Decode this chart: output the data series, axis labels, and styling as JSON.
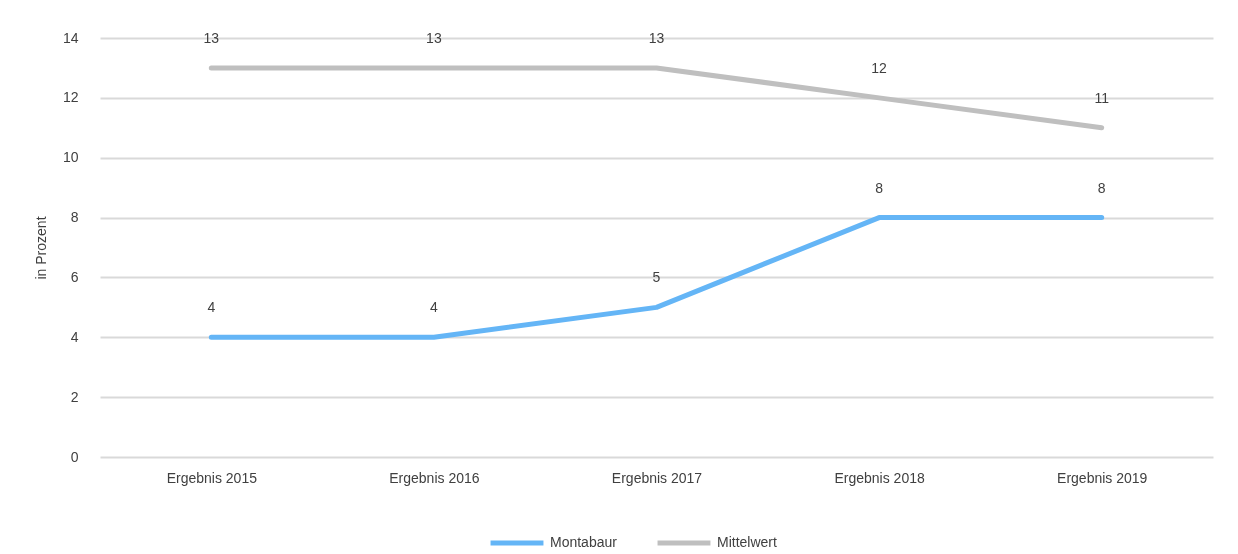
{
  "chart_data": {
    "type": "line",
    "ylabel": "in Prozent",
    "categories": [
      "Ergebnis 2015",
      "Ergebnis 2016",
      "Ergebnis 2017",
      "Ergebnis 2018",
      "Ergebnis 2019"
    ],
    "series": [
      {
        "name": "Montabaur",
        "color": "#64b5f6",
        "values": [
          4,
          4,
          5,
          8,
          8
        ]
      },
      {
        "name": "Mittelwert",
        "color": "#bfbfbf",
        "values": [
          13,
          13,
          13,
          12,
          11
        ]
      }
    ],
    "ylim": [
      0,
      14
    ],
    "yticks": [
      0,
      2,
      4,
      6,
      8,
      10,
      12,
      14
    ],
    "grid": "y",
    "legend": "bottom",
    "data_labels": true,
    "line_style": "solid"
  }
}
